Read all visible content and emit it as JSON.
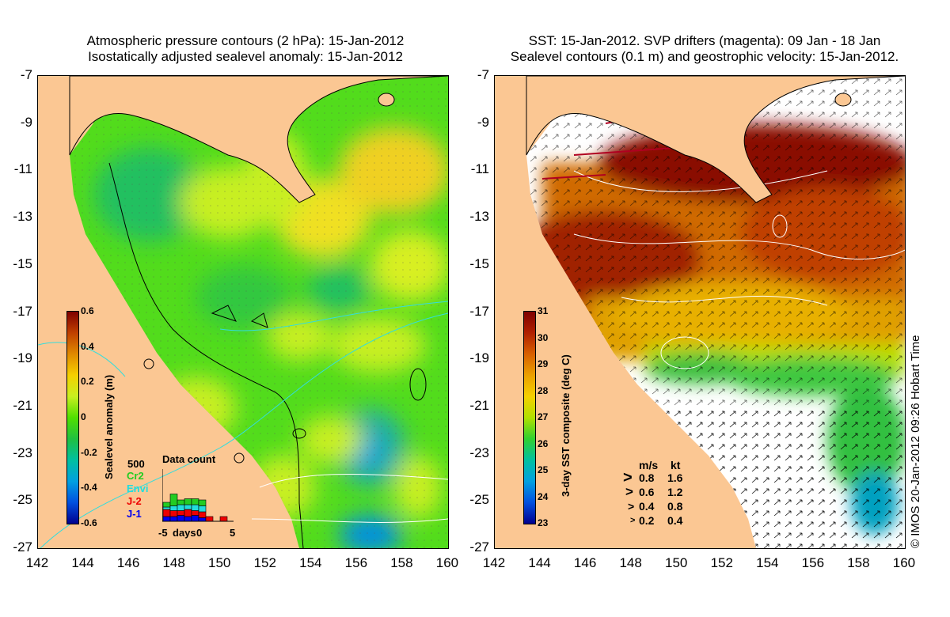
{
  "left_panel": {
    "title_line1": "Atmospheric pressure contours (2 hPa): 15-Jan-2012",
    "title_line2": "Isostatically adjusted sealevel anomaly: 15-Jan-2012",
    "y_ticks": [
      "-7",
      "-9",
      "-11",
      "-13",
      "-15",
      "-17",
      "-19",
      "-21",
      "-23",
      "-25",
      "-27"
    ],
    "x_ticks": [
      "142",
      "144",
      "146",
      "148",
      "150",
      "152",
      "154",
      "156",
      "158",
      "160"
    ],
    "colorbar": {
      "label": "Sealevel anomaly (m)",
      "ticks": [
        "0.6",
        "0.4",
        "0.2",
        "0",
        "-0.2",
        "-0.4",
        "-0.6"
      ],
      "colors": [
        "#7f0000",
        "#c04000",
        "#e08a00",
        "#f5d000",
        "#c8ef20",
        "#50e000",
        "#20c040",
        "#00c0a0",
        "#00a0e0",
        "#0050e0",
        "#00008f"
      ]
    },
    "data_count": {
      "title": "Data count",
      "max_label": "500",
      "missions": [
        {
          "name": "Cr2",
          "color": "#22cc22"
        },
        {
          "name": "Envi",
          "color": "#22dddd"
        },
        {
          "name": "J-2",
          "color": "#ee0000"
        },
        {
          "name": "J-1",
          "color": "#0000ee"
        }
      ],
      "x_labels": [
        "-5",
        "days",
        "0",
        "5"
      ],
      "bars": [
        {
          "J-1": 0.2,
          "J-2": 0.3,
          "Envi": 0.1,
          "Cr2": 0.2
        },
        {
          "J-1": 0.2,
          "J-2": 0.25,
          "Envi": 0.2,
          "Cr2": 0.5
        },
        {
          "J-1": 0.25,
          "J-2": 0.2,
          "Envi": 0.25,
          "Cr2": 0.2
        },
        {
          "J-1": 0.2,
          "J-2": 0.3,
          "Envi": 0.2,
          "Cr2": 0.25
        },
        {
          "J-1": 0.25,
          "J-2": 0.2,
          "Envi": 0.25,
          "Cr2": 0.25
        },
        {
          "J-1": 0.15,
          "J-2": 0.25,
          "Envi": 0.25,
          "Cr2": 0.25
        },
        {
          "J-1": 0.0,
          "J-2": 0.2,
          "Envi": 0.0,
          "Cr2": 0.0
        },
        {
          "J-1": 0.0,
          "J-2": 0.0,
          "Envi": 0.0,
          "Cr2": 0.0
        },
        {
          "J-1": 0.0,
          "J-2": 0.2,
          "Envi": 0.0,
          "Cr2": 0.0
        }
      ]
    }
  },
  "right_panel": {
    "title_line1": "SST: 15-Jan-2012. SVP drifters (magenta): 09 Jan - 18 Jan",
    "title_line2": "Sealevel contours (0.1 m) and geostrophic velocity: 15-Jan-2012.",
    "y_ticks": [
      "-7",
      "-9",
      "-11",
      "-13",
      "-15",
      "-17",
      "-19",
      "-21",
      "-23",
      "-25",
      "-27"
    ],
    "x_ticks": [
      "142",
      "144",
      "146",
      "148",
      "150",
      "152",
      "154",
      "156",
      "158",
      "160"
    ],
    "colorbar": {
      "label": "3-day SST composite (deg C)",
      "ticks": [
        "31",
        "30",
        "29",
        "28",
        "27",
        "26",
        "25",
        "24",
        "23"
      ],
      "colors": [
        "#7f0000",
        "#b02000",
        "#d86000",
        "#eaa000",
        "#f5d000",
        "#b0e000",
        "#30d030",
        "#00c0a0",
        "#00a0e0",
        "#0050e0",
        "#00008f"
      ]
    },
    "velocity_legend": {
      "header_ms": "m/s",
      "header_kt": "kt",
      "rows": [
        {
          "ms": "0.8",
          "kt": "1.6"
        },
        {
          "ms": "0.6",
          "kt": "1.2"
        },
        {
          "ms": "0.4",
          "kt": "0.8"
        },
        {
          "ms": "0.2",
          "kt": "0.4"
        }
      ]
    }
  },
  "copyright": "© IMOS 20-Jan-2012 09:26 Hobart Time",
  "colors": {
    "land": "#fbc793",
    "coast": "#000000",
    "sst_missing": "#ffffff"
  }
}
